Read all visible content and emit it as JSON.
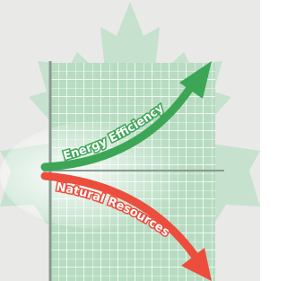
{
  "labels": {
    "up": "Energy Efficiency",
    "down": "Natural Resources"
  }
}
